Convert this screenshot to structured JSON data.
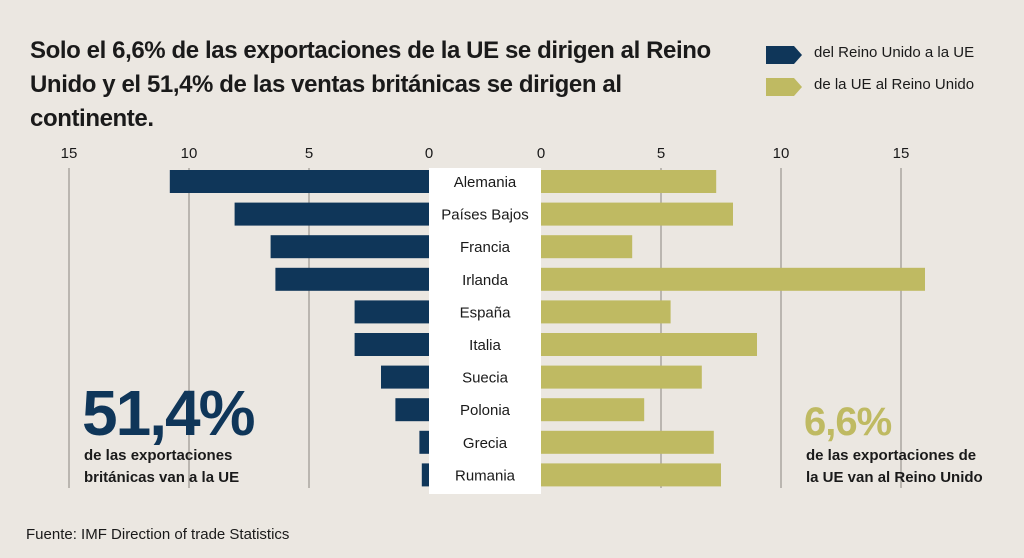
{
  "title": "Solo el 6,6% de las exportaciones de la UE se dirigen al Reino Unido y el 51,4% de las ventas británicas se dirigen al continente.",
  "legend": [
    {
      "label": "del Reino Unido a la UE",
      "color": "#0f3659"
    },
    {
      "label": "de la UE al Reino Unido",
      "color": "#bfba62"
    }
  ],
  "chart_data": {
    "type": "bar",
    "orientation": "horizontal-butterfly",
    "categories": [
      "Alemania",
      "Países Bajos",
      "Francia",
      "Irlanda",
      "España",
      "Italia",
      "Suecia",
      "Polonia",
      "Grecia",
      "Rumania"
    ],
    "series": [
      {
        "name": "del Reino Unido a la UE",
        "color": "#0f3659",
        "side": "left",
        "values": [
          10.8,
          8.1,
          6.6,
          6.4,
          3.1,
          3.1,
          2.0,
          1.4,
          0.4,
          0.3
        ]
      },
      {
        "name": "de la UE al Reino Unido",
        "color": "#bfba62",
        "side": "right",
        "values": [
          7.3,
          8.0,
          3.8,
          16.0,
          5.4,
          9.0,
          6.7,
          4.3,
          7.2,
          7.5
        ]
      }
    ],
    "left_axis": {
      "ticks": [
        15,
        10,
        5,
        0
      ],
      "range": [
        0,
        15
      ]
    },
    "right_axis": {
      "ticks": [
        0,
        5,
        10,
        15
      ],
      "range": [
        0,
        15
      ]
    },
    "grid": true
  },
  "left_callout": {
    "value": "51,4%",
    "line1": "de las exportaciones",
    "line2": "británicas van a la UE",
    "color": "#0f3659"
  },
  "right_callout": {
    "value": "6,6%",
    "line1": "de las exportaciones de",
    "line2": "la UE van al Reino Unido",
    "color": "#bfba62"
  },
  "source": "Fuente: IMF Direction of trade Statistics"
}
